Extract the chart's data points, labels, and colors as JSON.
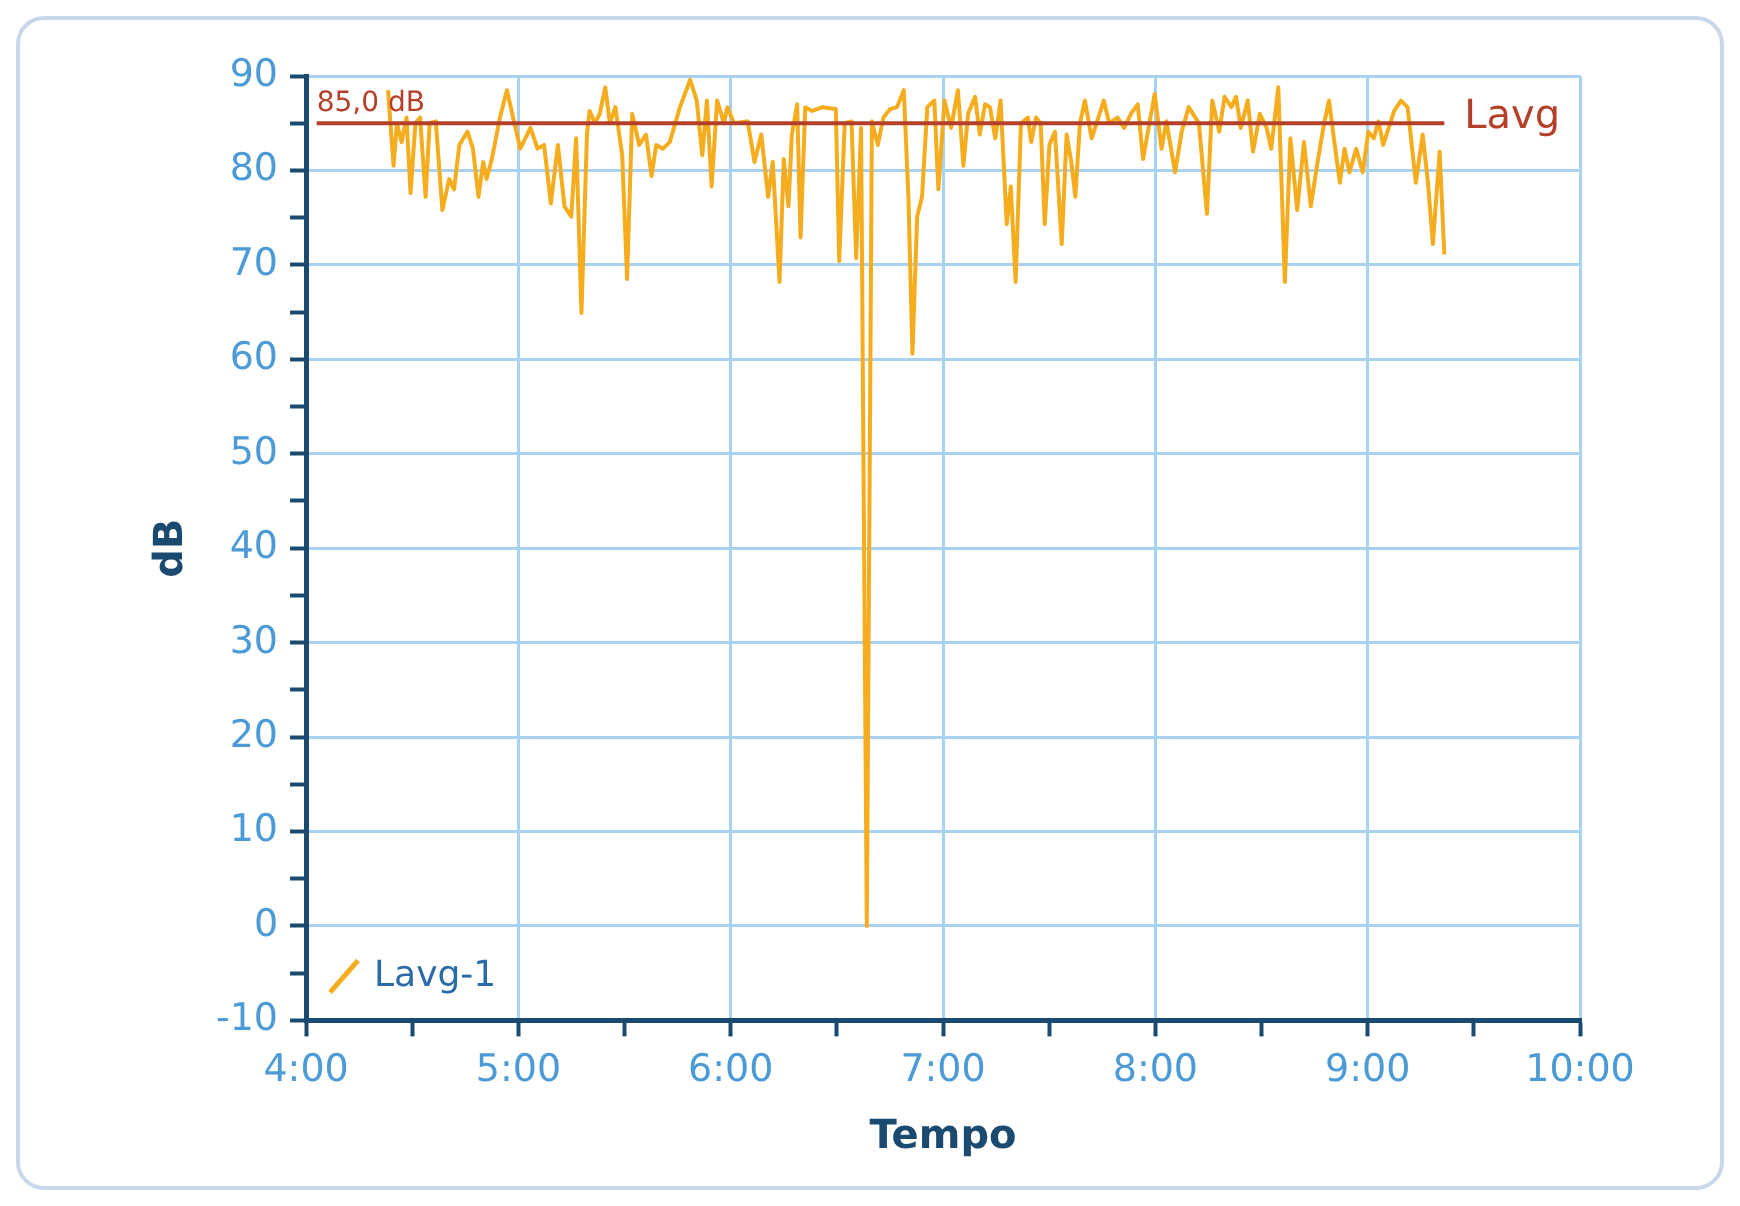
{
  "chart_data": {
    "type": "line",
    "xlabel": "Tempo",
    "ylabel": "dB",
    "xlim": [
      4,
      10
    ],
    "xticks": [
      {
        "value": 4,
        "label": "4:00"
      },
      {
        "value": 4.5,
        "label": null
      },
      {
        "value": 5,
        "label": "5:00"
      },
      {
        "value": 5.5,
        "label": null
      },
      {
        "value": 6,
        "label": "6:00"
      },
      {
        "value": 6.5,
        "label": null
      },
      {
        "value": 7,
        "label": "7:00"
      },
      {
        "value": 7.5,
        "label": null
      },
      {
        "value": 8,
        "label": "8:00"
      },
      {
        "value": 8.5,
        "label": null
      },
      {
        "value": 9,
        "label": "9:00"
      },
      {
        "value": 9.5,
        "label": null
      },
      {
        "value": 10,
        "label": "10:00"
      }
    ],
    "ylim": [
      -10,
      90
    ],
    "yticks": [
      -10,
      {
        "value": -5,
        "label": null
      },
      0,
      {
        "value": 5,
        "label": null
      },
      10,
      {
        "value": 15,
        "label": null
      },
      20,
      {
        "value": 25,
        "label": null
      },
      30,
      {
        "value": 35,
        "label": null
      },
      40,
      {
        "value": 45,
        "label": null
      },
      50,
      {
        "value": 55,
        "label": null
      },
      60,
      {
        "value": 65,
        "label": null
      },
      70,
      {
        "value": 75,
        "label": null
      },
      80,
      {
        "value": 85,
        "label": null
      },
      90
    ],
    "grid": true,
    "legend": "bottom left",
    "marker": "none",
    "line_style": "solid",
    "ref_lines": [
      {
        "axis": "y",
        "value": 85,
        "label": "Lavg",
        "color": "#b5402a"
      }
    ],
    "annotations": [
      {
        "text": "85,0 dB",
        "x": 4.05,
        "y": 85
      }
    ],
    "series": [
      {
        "name": "Lavg-1",
        "color": "#f5ad1f",
        "x": [
          4.386,
          4.412,
          4.428,
          4.45,
          4.473,
          4.492,
          4.515,
          4.537,
          4.563,
          4.582,
          4.611,
          4.642,
          4.674,
          4.697,
          4.722,
          4.76,
          4.786,
          4.812,
          4.834,
          4.85,
          4.875,
          4.913,
          4.946,
          4.971,
          5.009,
          5.057,
          5.09,
          5.121,
          5.153,
          5.186,
          5.217,
          5.249,
          5.272,
          5.297,
          5.323,
          5.335,
          5.361,
          5.383,
          5.409,
          5.431,
          5.457,
          5.489,
          5.512,
          5.536,
          5.569,
          5.601,
          5.627,
          5.649,
          5.68,
          5.713,
          5.761,
          5.809,
          5.84,
          5.866,
          5.888,
          5.91,
          5.936,
          5.968,
          5.984,
          6.016,
          6.08,
          6.112,
          6.144,
          6.176,
          6.198,
          6.23,
          6.25,
          6.272,
          6.288,
          6.313,
          6.329,
          6.351,
          6.384,
          6.432,
          6.495,
          6.511,
          6.537,
          6.569,
          6.591,
          6.614,
          6.641,
          6.665,
          6.693,
          6.719,
          6.751,
          6.783,
          6.815,
          6.837,
          6.856,
          6.878,
          6.901,
          6.926,
          6.959,
          6.978,
          7.007,
          7.038,
          7.07,
          7.096,
          7.118,
          7.151,
          7.173,
          7.198,
          7.221,
          7.246,
          7.271,
          7.3,
          7.319,
          7.342,
          7.367,
          7.4,
          7.415,
          7.438,
          7.46,
          7.479,
          7.501,
          7.527,
          7.559,
          7.582,
          7.604,
          7.623,
          7.645,
          7.668,
          7.7,
          7.726,
          7.757,
          7.783,
          7.822,
          7.853,
          7.885,
          7.917,
          7.942,
          7.965,
          7.997,
          8.029,
          8.052,
          8.093,
          8.124,
          8.157,
          8.205,
          8.243,
          8.268,
          8.301,
          8.326,
          8.358,
          8.38,
          8.402,
          8.435,
          8.46,
          8.492,
          8.524,
          8.546,
          8.579,
          8.61,
          8.636,
          8.668,
          8.7,
          8.732,
          8.764,
          8.795,
          8.818,
          8.843,
          8.869,
          8.891,
          8.914,
          8.946,
          8.977,
          9.003,
          9.029,
          9.051,
          9.073,
          9.099,
          9.125,
          9.157,
          9.188,
          9.227,
          9.259,
          9.284,
          9.307,
          9.339,
          9.361
        ],
        "values": [
          88.5,
          80.5,
          85,
          83,
          85.6,
          77.6,
          85,
          85.6,
          77.2,
          85,
          85.2,
          75.8,
          79.1,
          78,
          82.7,
          84.1,
          82.3,
          77.2,
          80.9,
          79.1,
          81.2,
          85.6,
          88.5,
          86,
          82.3,
          84.5,
          82.3,
          82.7,
          76.5,
          82.7,
          76.2,
          75.1,
          83.4,
          64.9,
          83.8,
          86.3,
          85,
          86,
          88.8,
          85,
          86.7,
          81.6,
          68.5,
          86,
          82.7,
          83.8,
          79.4,
          82.7,
          82.3,
          83,
          86.7,
          89.6,
          87.4,
          81.6,
          87.4,
          78.3,
          87.4,
          85,
          86.7,
          85,
          85.2,
          80.9,
          83.8,
          77.2,
          80.9,
          68.2,
          81.2,
          76.2,
          83.8,
          87,
          72.9,
          86.7,
          86.3,
          86.7,
          86.5,
          70.4,
          85,
          85.2,
          70.7,
          84.5,
          0,
          85.2,
          82.7,
          85.6,
          86.5,
          86.7,
          88.5,
          77.2,
          60.6,
          75.1,
          77.2,
          86.7,
          87.4,
          78,
          87.4,
          84.5,
          88.5,
          80.5,
          86,
          87.8,
          83.8,
          87,
          86.7,
          83.4,
          87.4,
          74.3,
          78.3,
          68.2,
          85,
          85.6,
          83,
          85.6,
          85,
          74.3,
          82.7,
          84.1,
          72.2,
          83.8,
          80.9,
          77.2,
          85,
          87.4,
          83.4,
          85.2,
          87.4,
          85,
          85.6,
          84.5,
          86,
          87,
          81.2,
          84.1,
          88.1,
          82.3,
          85.2,
          79.8,
          84.1,
          86.7,
          85,
          75.4,
          87.4,
          84.1,
          87.8,
          86.7,
          87.8,
          84.5,
          87.4,
          82,
          86,
          84.5,
          82.3,
          88.8,
          68.2,
          83.4,
          75.8,
          83,
          76.2,
          80.9,
          85,
          87.4,
          83,
          78.7,
          82.3,
          79.8,
          82.3,
          79.8,
          84.1,
          83.4,
          85.2,
          82.7,
          84.5,
          86.3,
          87.4,
          86.7,
          78.7,
          83.8,
          78.7,
          72.2,
          82,
          71.1
        ]
      }
    ]
  }
}
